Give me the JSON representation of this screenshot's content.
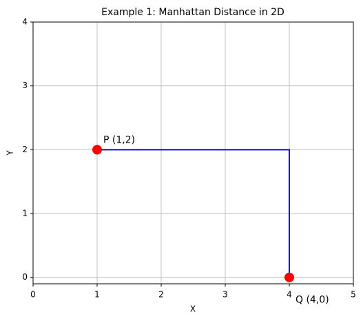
{
  "chart_data": {
    "type": "scatter",
    "title": "Example 1: Manhattan Distance in 2D",
    "xlabel": "X",
    "ylabel": "Y",
    "series": [
      {
        "type": "line",
        "color": "#0000ff",
        "x": [
          1,
          4,
          4
        ],
        "values": [
          2,
          2,
          0
        ]
      },
      {
        "type": "scatter",
        "color": "#ff0000",
        "x": [
          1,
          4
        ],
        "values": [
          2,
          0
        ]
      }
    ],
    "annotations": [
      "P (1,2)",
      "Q (4,0)"
    ],
    "xlim": [
      0,
      5
    ],
    "ylim": [
      -0.1,
      4
    ],
    "xticks": [
      0,
      1,
      2,
      3,
      4,
      5
    ],
    "yticks": [
      0,
      1,
      2,
      3,
      4
    ],
    "grid": true
  }
}
